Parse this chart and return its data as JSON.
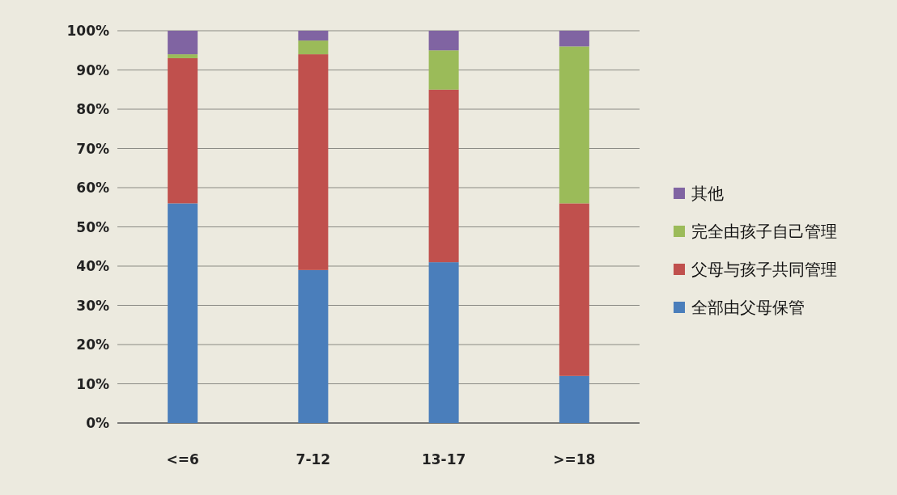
{
  "chart_data": {
    "type": "bar",
    "stacked": true,
    "categories": [
      "<=6",
      "7-12",
      "13-17",
      ">=18"
    ],
    "series": [
      {
        "name": "全部由父母保管",
        "color": "#4a7ebb",
        "values": [
          56,
          39,
          41,
          12
        ]
      },
      {
        "name": "父母与孩子共同管理",
        "color": "#c0504d",
        "values": [
          37,
          55,
          44,
          44
        ]
      },
      {
        "name": "完全由孩子自己管理",
        "color": "#9bbb59",
        "values": [
          1,
          3.5,
          10,
          40
        ]
      },
      {
        "name": "其他",
        "color": "#8064a2",
        "values": [
          6,
          2.5,
          5,
          4
        ]
      }
    ],
    "ylim": [
      0,
      100
    ],
    "yticks": [
      {
        "value": 0,
        "label": "0%"
      },
      {
        "value": 10,
        "label": "10%"
      },
      {
        "value": 20,
        "label": "20%"
      },
      {
        "value": 30,
        "label": "30%"
      },
      {
        "value": 40,
        "label": "40%"
      },
      {
        "value": 50,
        "label": "50%"
      },
      {
        "value": 60,
        "label": "60%"
      },
      {
        "value": 70,
        "label": "70%"
      },
      {
        "value": 80,
        "label": "80%"
      },
      {
        "value": 90,
        "label": "90%"
      },
      {
        "value": 100,
        "label": "100%"
      }
    ],
    "grid": "y",
    "legend": "right"
  }
}
